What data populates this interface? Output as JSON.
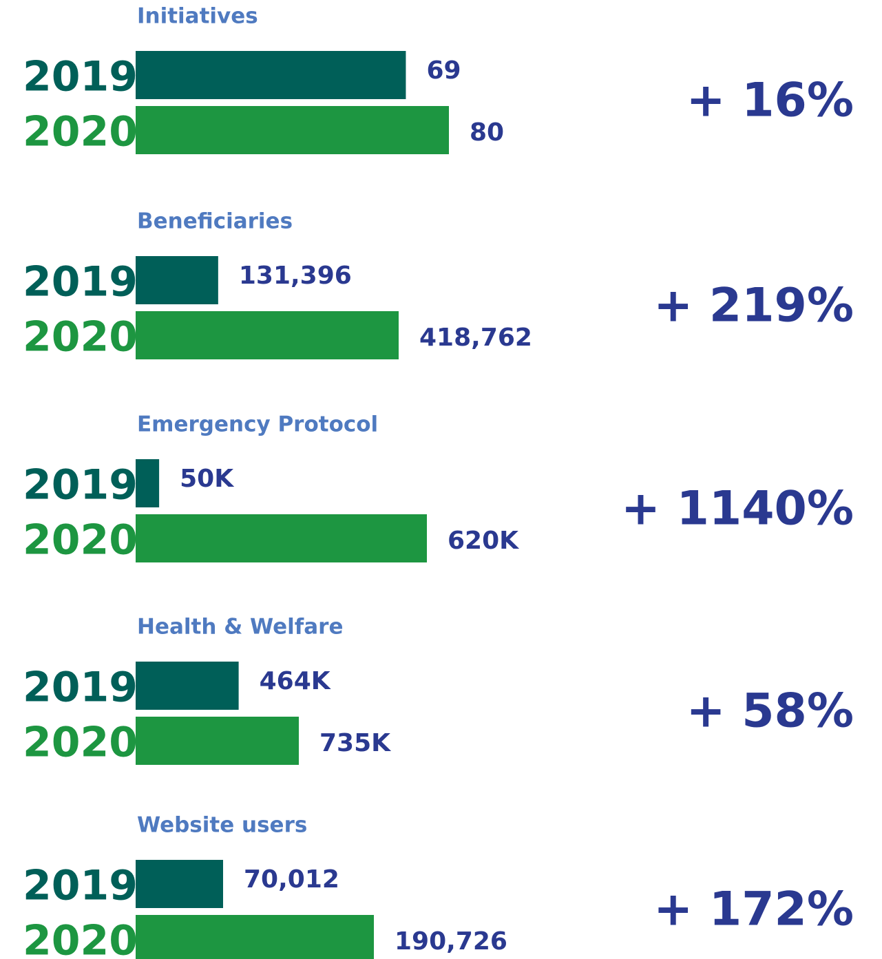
{
  "chart_data": [
    {
      "type": "bar",
      "title": "Initiatives",
      "categories": [
        "2019",
        "2020"
      ],
      "values": [
        69,
        80
      ],
      "colors": [
        "#005f58",
        "#1d9641"
      ],
      "change": {
        "value": 16,
        "label": "+ 16%"
      }
    },
    {
      "type": "bar",
      "title": "Beneficiaries",
      "categories": [
        "2019",
        "2020"
      ],
      "values": [
        131396,
        418762
      ],
      "value_labels": [
        "131,396",
        "418,762"
      ],
      "colors": [
        "#005f58",
        "#1d9641"
      ],
      "change": {
        "value": 219,
        "label": "+ 219%"
      }
    },
    {
      "type": "bar",
      "title": "Emergency Protocol",
      "categories": [
        "2019",
        "2020"
      ],
      "values": [
        50000,
        620000
      ],
      "value_labels": [
        "50K",
        "620K"
      ],
      "colors": [
        "#005f58",
        "#1d9641"
      ],
      "change": {
        "value": 1140,
        "label": "+ 1140%"
      }
    },
    {
      "type": "bar",
      "title": "Health & Welfare",
      "categories": [
        "2019",
        "2020"
      ],
      "values": [
        464000,
        735000
      ],
      "value_labels": [
        "464K",
        "735K"
      ],
      "colors": [
        "#005f58",
        "#1d9641"
      ],
      "change": {
        "value": 58,
        "label": "+ 58%"
      }
    },
    {
      "type": "bar",
      "title": "Website users",
      "categories": [
        "2019",
        "2020"
      ],
      "values": [
        70012,
        190726
      ],
      "value_labels": [
        "70,012",
        "190,726"
      ],
      "colors": [
        "#005f58",
        "#1d9641"
      ],
      "change": {
        "value": 172,
        "label": "+ 172%"
      }
    }
  ]
}
